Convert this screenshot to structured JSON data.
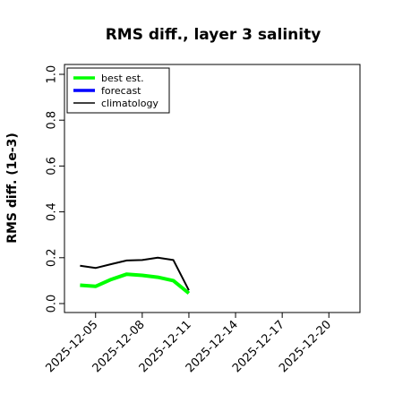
{
  "chart_data": {
    "type": "line",
    "title": "RMS diff., layer 3 salinity",
    "ylabel": "RMS diff. (1e-3)",
    "xlabel": "",
    "ylim": [
      0.0,
      1.0
    ],
    "y_ticks": [
      0.0,
      0.2,
      0.4,
      0.6,
      0.8,
      1.0
    ],
    "y_tick_labels": [
      "0.0",
      "0.2",
      "0.4",
      "0.6",
      "0.8",
      "1.0"
    ],
    "xlim": [
      "2025-12-03",
      "2025-12-22"
    ],
    "x_ticks": [
      "2025-12-05",
      "2025-12-08",
      "2025-12-11",
      "2025-12-14",
      "2025-12-17",
      "2025-12-20"
    ],
    "highlight_tick": "2025-12-11",
    "highlight_color": "#228B22",
    "legend_position": "top-left",
    "grid": false,
    "series": [
      {
        "name": "best est.",
        "color": "#00ff00",
        "line_width": 4,
        "points": [
          {
            "x": "2025-12-04",
            "y": 0.08
          },
          {
            "x": "2025-12-05",
            "y": 0.075
          },
          {
            "x": "2025-12-06",
            "y": 0.105
          },
          {
            "x": "2025-12-07",
            "y": 0.128
          },
          {
            "x": "2025-12-08",
            "y": 0.123
          },
          {
            "x": "2025-12-09",
            "y": 0.115
          },
          {
            "x": "2025-12-10",
            "y": 0.1
          },
          {
            "x": "2025-12-11",
            "y": 0.045
          }
        ]
      },
      {
        "name": "forecast",
        "color": "#0000ff",
        "line_width": 4,
        "points": []
      },
      {
        "name": "climatology",
        "color": "#000000",
        "line_width": 2,
        "points": [
          {
            "x": "2025-12-04",
            "y": 0.165
          },
          {
            "x": "2025-12-05",
            "y": 0.155
          },
          {
            "x": "2025-12-06",
            "y": 0.172
          },
          {
            "x": "2025-12-07",
            "y": 0.188
          },
          {
            "x": "2025-12-08",
            "y": 0.19
          },
          {
            "x": "2025-12-09",
            "y": 0.2
          },
          {
            "x": "2025-12-10",
            "y": 0.19
          },
          {
            "x": "2025-12-11",
            "y": 0.058
          }
        ]
      }
    ]
  }
}
